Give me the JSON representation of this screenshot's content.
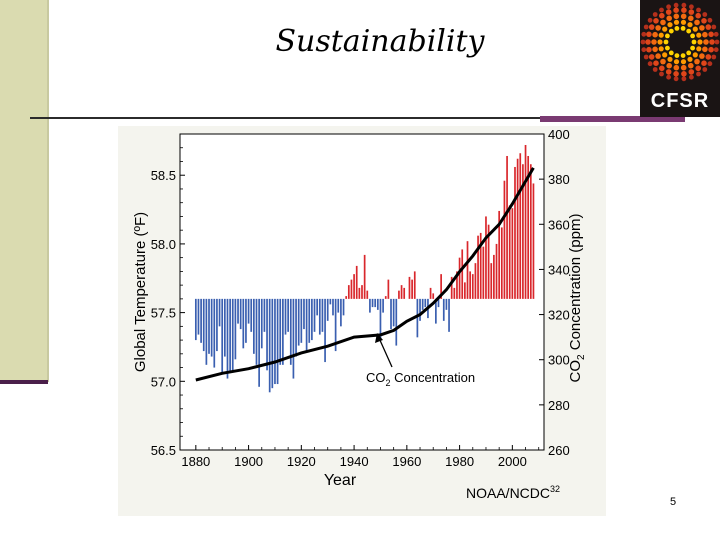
{
  "slide": {
    "title": "Sustainability",
    "page_number": "5",
    "logo_text": "CFSR"
  },
  "colors": {
    "positive_bar": "#d9272c",
    "negative_bar": "#3a5fb0",
    "co2_line": "#000000",
    "sidebar": "#dadbb0",
    "accent": "#4a1f4a"
  },
  "chart_data": {
    "type": "bar",
    "title": "",
    "xlabel": "Year",
    "ylabel": "Global Temperature (ºF)",
    "y2label": "CO2 Concentration (ppm)",
    "source": "NOAA/NCDC32",
    "annotation": "CO2 Concentration",
    "xlim": [
      1874,
      2012
    ],
    "ylim": [
      56.5,
      58.8
    ],
    "y2lim": [
      260,
      400
    ],
    "baseline": 57.6,
    "x_ticks": [
      1880,
      1900,
      1920,
      1940,
      1960,
      1980,
      2000
    ],
    "y_ticks": [
      56.5,
      57.0,
      57.5,
      58.0,
      58.5
    ],
    "y2_ticks": [
      260,
      280,
      300,
      320,
      340,
      360,
      380,
      400
    ],
    "series": [
      {
        "kind": "bar",
        "years": [
          1880,
          1881,
          1882,
          1883,
          1884,
          1885,
          1886,
          1887,
          1888,
          1889,
          1890,
          1891,
          1892,
          1893,
          1894,
          1895,
          1896,
          1897,
          1898,
          1899,
          1900,
          1901,
          1902,
          1903,
          1904,
          1905,
          1906,
          1907,
          1908,
          1909,
          1910,
          1911,
          1912,
          1913,
          1914,
          1915,
          1916,
          1917,
          1918,
          1919,
          1920,
          1921,
          1922,
          1923,
          1924,
          1925,
          1926,
          1927,
          1928,
          1929,
          1930,
          1931,
          1932,
          1933,
          1934,
          1935,
          1936,
          1937,
          1938,
          1939,
          1940,
          1941,
          1942,
          1943,
          1944,
          1945,
          1946,
          1947,
          1948,
          1949,
          1950,
          1951,
          1952,
          1953,
          1954,
          1955,
          1956,
          1957,
          1958,
          1959,
          1960,
          1961,
          1962,
          1963,
          1964,
          1965,
          1966,
          1967,
          1968,
          1969,
          1970,
          1971,
          1972,
          1973,
          1974,
          1975,
          1976,
          1977,
          1978,
          1979,
          1980,
          1981,
          1982,
          1983,
          1984,
          1985,
          1986,
          1987,
          1988,
          1989,
          1990,
          1991,
          1992,
          1993,
          1994,
          1995,
          1996,
          1997,
          1998,
          1999,
          2000,
          2001,
          2002,
          2003,
          2004,
          2005,
          2006,
          2007,
          2008
        ],
        "values": [
          57.3,
          57.34,
          57.28,
          57.22,
          57.12,
          57.2,
          57.18,
          57.1,
          57.22,
          57.4,
          57.06,
          57.18,
          57.02,
          57.06,
          57.08,
          57.16,
          57.42,
          57.38,
          57.24,
          57.28,
          57.42,
          57.36,
          57.2,
          57.12,
          56.96,
          57.24,
          57.36,
          57.08,
          56.92,
          56.95,
          56.98,
          56.98,
          57.12,
          57.12,
          57.34,
          57.36,
          57.12,
          57.02,
          57.18,
          57.26,
          57.28,
          57.38,
          57.22,
          57.28,
          57.3,
          57.36,
          57.48,
          57.34,
          57.36,
          57.14,
          57.44,
          57.56,
          57.48,
          57.22,
          57.5,
          57.4,
          57.48,
          57.62,
          57.7,
          57.74,
          57.78,
          57.84,
          57.68,
          57.7,
          57.92,
          57.66,
          57.5,
          57.54,
          57.54,
          57.52,
          57.3,
          57.5,
          57.62,
          57.74,
          57.38,
          57.4,
          57.26,
          57.66,
          57.7,
          57.68,
          57.6,
          57.76,
          57.74,
          57.8,
          57.32,
          57.44,
          57.52,
          57.54,
          57.46,
          57.68,
          57.64,
          57.42,
          57.54,
          57.78,
          57.44,
          57.52,
          57.36,
          57.76,
          57.68,
          57.8,
          57.9,
          57.96,
          57.72,
          58.02,
          57.8,
          57.78,
          57.86,
          58.06,
          58.08,
          57.98,
          58.2,
          58.14,
          57.86,
          57.92,
          58.0,
          58.24,
          58.12,
          58.46,
          58.64,
          58.28,
          58.26,
          58.56,
          58.62,
          58.66,
          58.58,
          58.72,
          58.64,
          58.58,
          58.44
        ],
        "color": "diverging"
      },
      {
        "kind": "line",
        "name": "CO2 Concentration",
        "years": [
          1880,
          1890,
          1900,
          1910,
          1920,
          1930,
          1940,
          1950,
          1955,
          1960,
          1965,
          1970,
          1975,
          1980,
          1985,
          1990,
          1995,
          2000,
          2005,
          2008
        ],
        "values": [
          291,
          294,
          296,
          299,
          303,
          306,
          310,
          311,
          313,
          317,
          320,
          325,
          331,
          339,
          346,
          354,
          360,
          369,
          379,
          385
        ]
      }
    ]
  }
}
